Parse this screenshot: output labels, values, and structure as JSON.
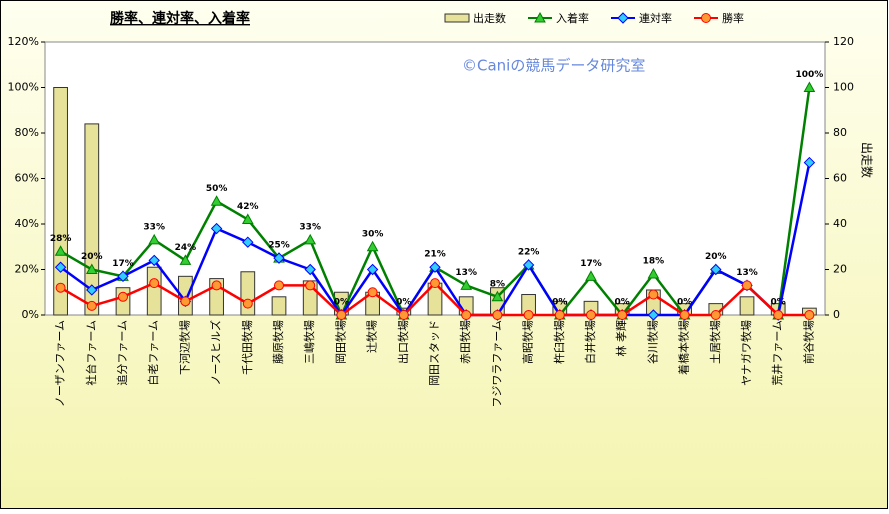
{
  "chart_data": {
    "type": "combo",
    "title": "勝率、連対率、入着率",
    "watermark": "©Caniの競馬データ研究室",
    "y2_label": "出走数",
    "categories": [
      "ノーザンファーム",
      "社台ファーム",
      "追分ファーム",
      "白老ファーム",
      "下河辺牧場",
      "ノースヒルズ",
      "千代田牧場",
      "藤原牧場",
      "三嶋牧場",
      "岡田牧場",
      "辻牧場",
      "出口牧場",
      "岡田スタッド",
      "赤田牧場",
      "フジワラファーム",
      "高昭牧場",
      "杵臼牧場",
      "白井牧場",
      "林 孝輝",
      "谷川牧場",
      "着橋本牧場",
      "土居牧場",
      "ヤナガワ牧場",
      "荒井ファーム",
      "前谷牧場"
    ],
    "ylim": [
      0,
      120
    ],
    "yticks": [
      {
        "value": 0,
        "label": "0%"
      },
      {
        "value": 20,
        "label": "20%"
      },
      {
        "value": 40,
        "label": "40%"
      },
      {
        "value": 60,
        "label": "60%"
      },
      {
        "value": 80,
        "label": "80%"
      },
      {
        "value": 100,
        "label": "100%"
      },
      {
        "value": 120,
        "label": "120%"
      }
    ],
    "y2lim": [
      0,
      120
    ],
    "y2ticks": [
      0,
      20,
      40,
      60,
      80,
      100,
      120
    ],
    "series": [
      {
        "name": "出走数",
        "type": "bar",
        "axis": "y2",
        "color": "#e6e29a",
        "values": [
          100,
          84,
          12,
          21,
          17,
          16,
          19,
          8,
          15,
          10,
          10,
          3,
          14,
          8,
          12,
          9,
          6,
          6,
          5,
          11,
          5,
          5,
          8,
          5,
          3
        ]
      },
      {
        "name": "入着率",
        "type": "line",
        "color": "#008000",
        "marker": "triangle",
        "marker_color": "#33cc33",
        "values": [
          28,
          20,
          17,
          33,
          24,
          50,
          42,
          25,
          33,
          0,
          30,
          0,
          21,
          13,
          8,
          22,
          0,
          17,
          0,
          18,
          0,
          20,
          13,
          0,
          100
        ],
        "value_labels": [
          "28%",
          "20%",
          "17%",
          "33%",
          "24%",
          "50%",
          "42%",
          "25%",
          "33%",
          "0%",
          "30%",
          "0%",
          "21%",
          "13%",
          "8%",
          "22%",
          "0%",
          "17%",
          "0%",
          "18%",
          "0%",
          "20%",
          "13%",
          "0%",
          "100%"
        ]
      },
      {
        "name": "連対率",
        "type": "line",
        "color": "#0000ff",
        "marker": "diamond",
        "marker_color": "#33ccff",
        "values": [
          21,
          11,
          17,
          24,
          6,
          38,
          32,
          25,
          20,
          0,
          20,
          0,
          21,
          0,
          0,
          22,
          0,
          0,
          0,
          0,
          0,
          20,
          13,
          0,
          67
        ]
      },
      {
        "name": "勝率",
        "type": "line",
        "color": "#ff0000",
        "marker": "circle",
        "marker_color": "#ff9933",
        "values": [
          12,
          4,
          8,
          14,
          6,
          13,
          5,
          13,
          13,
          0,
          10,
          0,
          14,
          0,
          0,
          0,
          0,
          0,
          0,
          9,
          0,
          0,
          13,
          0,
          0
        ]
      }
    ]
  }
}
